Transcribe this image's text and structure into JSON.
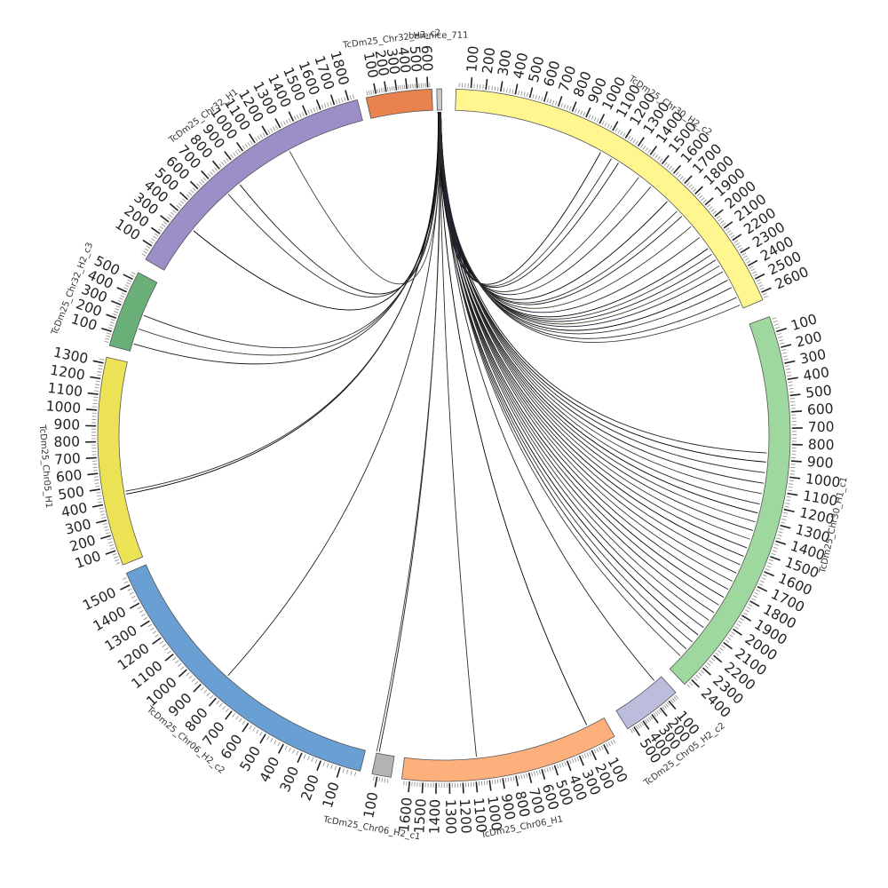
{
  "diagram": {
    "type": "circos",
    "segments": [
      {
        "name": "berenice_711",
        "tick_labels": [],
        "color": "#cccccc"
      },
      {
        "name": "TcDm25_Chr30_H2_c2",
        "tick_labels": [
          "100",
          "200",
          "300",
          "400",
          "500",
          "600",
          "700",
          "800",
          "900",
          "1000",
          "1100",
          "1200",
          "1300",
          "1400",
          "1500",
          "1600",
          "1700",
          "1800",
          "1900",
          "2000",
          "2100",
          "2200",
          "2300",
          "2400",
          "2500",
          "2600"
        ],
        "color": "#fff68f"
      },
      {
        "name": "TcDm25_Chr30_H1_c1",
        "tick_labels": [
          "100",
          "200",
          "300",
          "400",
          "500",
          "600",
          "700",
          "800",
          "900",
          "1000",
          "1100",
          "1200",
          "1300",
          "1400",
          "1500",
          "1600",
          "1700",
          "1800",
          "1900",
          "2000",
          "2100",
          "2200",
          "2300",
          "2400"
        ],
        "color": "#9fd89f"
      },
      {
        "name": "TcDm25_Chr05_H2_c2",
        "tick_labels": [
          "100",
          "200",
          "300",
          "400",
          "500"
        ],
        "color": "#bcbddc"
      },
      {
        "name": "TcDm25_Chr06_H1",
        "tick_labels": [
          "100",
          "200",
          "300",
          "400",
          "500",
          "600",
          "700",
          "800",
          "900",
          "1000",
          "1100",
          "1200",
          "1300",
          "1400",
          "1500",
          "1600"
        ],
        "color": "#fdb07c"
      },
      {
        "name": "TcDm25_Chr06_H2_c1",
        "tick_labels": [
          "100"
        ],
        "color": "#b3b3b3"
      },
      {
        "name": "TcDm25_Chr06_H2_c2",
        "tick_labels": [
          "100",
          "200",
          "300",
          "400",
          "500",
          "600",
          "700",
          "800",
          "900",
          "1000",
          "1100",
          "1200",
          "1300",
          "1400",
          "1500"
        ],
        "color": "#6a9fd3"
      },
      {
        "name": "TcDm25_Chr05_H1",
        "tick_labels": [
          "100",
          "200",
          "300",
          "400",
          "500",
          "600",
          "700",
          "800",
          "900",
          "1000",
          "1100",
          "1200",
          "1300"
        ],
        "color": "#ece256"
      },
      {
        "name": "TcDm25_Chr32_H2_c3",
        "tick_labels": [
          "100",
          "200",
          "300",
          "400",
          "500"
        ],
        "color": "#6aae78"
      },
      {
        "name": "TcDm25_Chr32_H1",
        "tick_labels": [
          "100",
          "200",
          "300",
          "400",
          "500",
          "600",
          "700",
          "800",
          "900",
          "1000",
          "1100",
          "1200",
          "1300",
          "1400",
          "1500",
          "1600",
          "1700",
          "1800"
        ],
        "color": "#9e8ec8"
      },
      {
        "name": "TcDm25_Chr32_H2_c2",
        "tick_labels": [
          "100",
          "200",
          "300",
          "400",
          "500",
          "600"
        ],
        "color": "#e8834f"
      }
    ],
    "links": [
      {
        "to_segment": "TcDm25_Chr30_H2_c2",
        "positions": [
          1100,
          1190,
          1250,
          1430,
          1540,
          1700,
          1800,
          1850,
          1950,
          2050,
          2150,
          2200,
          2250,
          2300,
          2350,
          2420,
          2480,
          2560,
          2620
        ]
      },
      {
        "to_segment": "TcDm25_Chr30_H1_c1",
        "positions": [
          860,
          920,
          990,
          1060,
          1130,
          1200,
          1260,
          1320,
          1380,
          1440,
          1500,
          1560,
          1620,
          1680,
          1740,
          1800,
          1860,
          1920,
          1980,
          2040,
          2100,
          2160,
          2220,
          2280,
          2340
        ]
      },
      {
        "to_segment": "TcDm25_Chr05_H2_c2",
        "positions": [
          80
        ]
      },
      {
        "to_segment": "TcDm25_Chr06_H1",
        "positions": [
          150,
          1080
        ]
      },
      {
        "to_segment": "TcDm25_Chr06_H2_c1",
        "positions": [
          120,
          160
        ]
      },
      {
        "to_segment": "TcDm25_Chr06_H2_c2",
        "positions": [
          830
        ]
      },
      {
        "to_segment": "TcDm25_Chr05_H1",
        "positions": [
          440,
          460
        ]
      },
      {
        "to_segment": "TcDm25_Chr32_H2_c3",
        "positions": [
          60,
          180,
          290
        ]
      },
      {
        "to_segment": "TcDm25_Chr32_H1",
        "positions": [
          360,
          730,
          840,
          1280
        ]
      }
    ],
    "link_colors": [
      "#000000",
      "#2b2b2b",
      "#1a1a1a",
      "#3a3a2a",
      "#202030"
    ]
  }
}
